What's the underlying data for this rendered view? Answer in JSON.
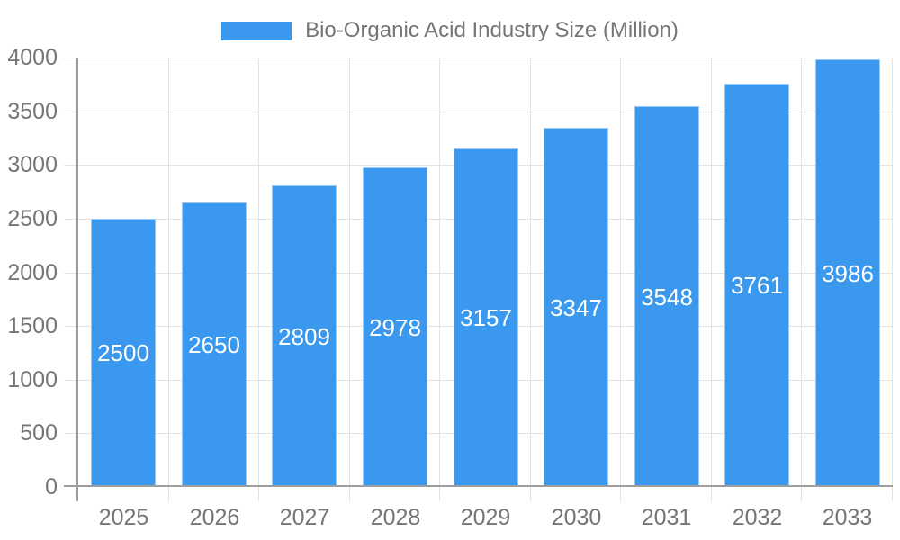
{
  "chart_data": {
    "type": "bar",
    "title": "Bio-Organic Acid Industry Size (Million)",
    "categories": [
      "2025",
      "2026",
      "2027",
      "2028",
      "2029",
      "2030",
      "2031",
      "2032",
      "2033"
    ],
    "values": [
      2500,
      2650,
      2809,
      2978,
      3157,
      3347,
      3548,
      3761,
      3986
    ],
    "ylim": [
      0,
      4000
    ],
    "ytick_step": 500,
    "ytick_labels": [
      "0",
      "500",
      "1000",
      "1500",
      "2000",
      "2500",
      "3000",
      "3500",
      "4000"
    ],
    "grid": "horizontal-and-vertical",
    "legend_position": "top-center",
    "value_labels": "inside-center-white"
  },
  "colors": {
    "background": "#ffffff",
    "bar": "#3a99ee",
    "bar_border": "#9ccaf5",
    "grid_line": "#e3e3e3",
    "axis_line": "#9e9e9e",
    "axis_label": "#757575",
    "legend_text": "#757575",
    "bar_label": "#ffffff"
  }
}
